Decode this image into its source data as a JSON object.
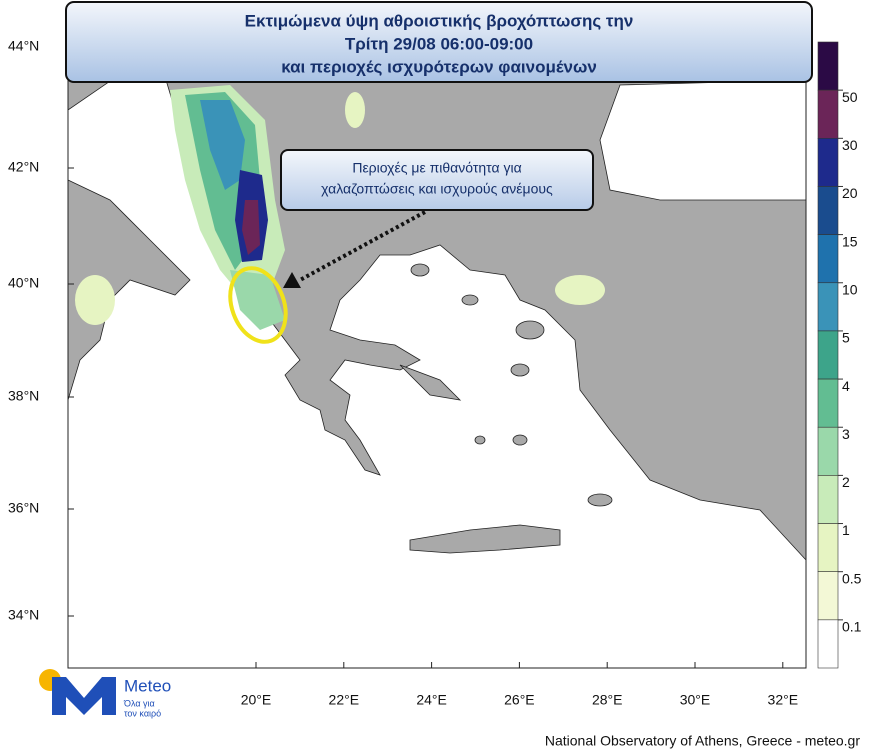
{
  "header": {
    "title_lines": [
      "Εκτιμώμενα ύψη αθροιστικής βροχόπτωσης την",
      "Τρίτη 29/08 06:00-09:00",
      "και περιοχές ισχυρότερων φαινομένων"
    ]
  },
  "callout": {
    "lines": [
      "Περιοχές με πιθανότητα για",
      "χαλαζοπτώσεις και ισχυρούς ανέμους"
    ]
  },
  "map": {
    "lat_labels": [
      "44°N",
      "42°N",
      "40°N",
      "38°N",
      "36°N",
      "34°N"
    ],
    "lon_labels": [
      "20°E",
      "22°E",
      "24°E",
      "26°E",
      "28°E",
      "30°E",
      "32°E"
    ]
  },
  "colorbar": {
    "ticks": [
      50,
      30,
      20,
      15,
      10,
      5,
      4,
      3,
      2,
      1,
      0.5,
      0.1
    ],
    "colors": [
      "#2b0a45",
      "#6b2558",
      "#1e2a8c",
      "#1a4c8e",
      "#1f72ad",
      "#3a93b8",
      "#3da48a",
      "#62bd92",
      "#9ad8aa",
      "#c8ebb9",
      "#e6f4c2",
      "#f3f8d6",
      "#ffffff"
    ]
  },
  "logo": {
    "name": "Meteo",
    "tagline_lines": [
      "Όλα για",
      "τον καιρό"
    ]
  },
  "footer": "National Observatory of Athens, Greece - meteo.gr"
}
